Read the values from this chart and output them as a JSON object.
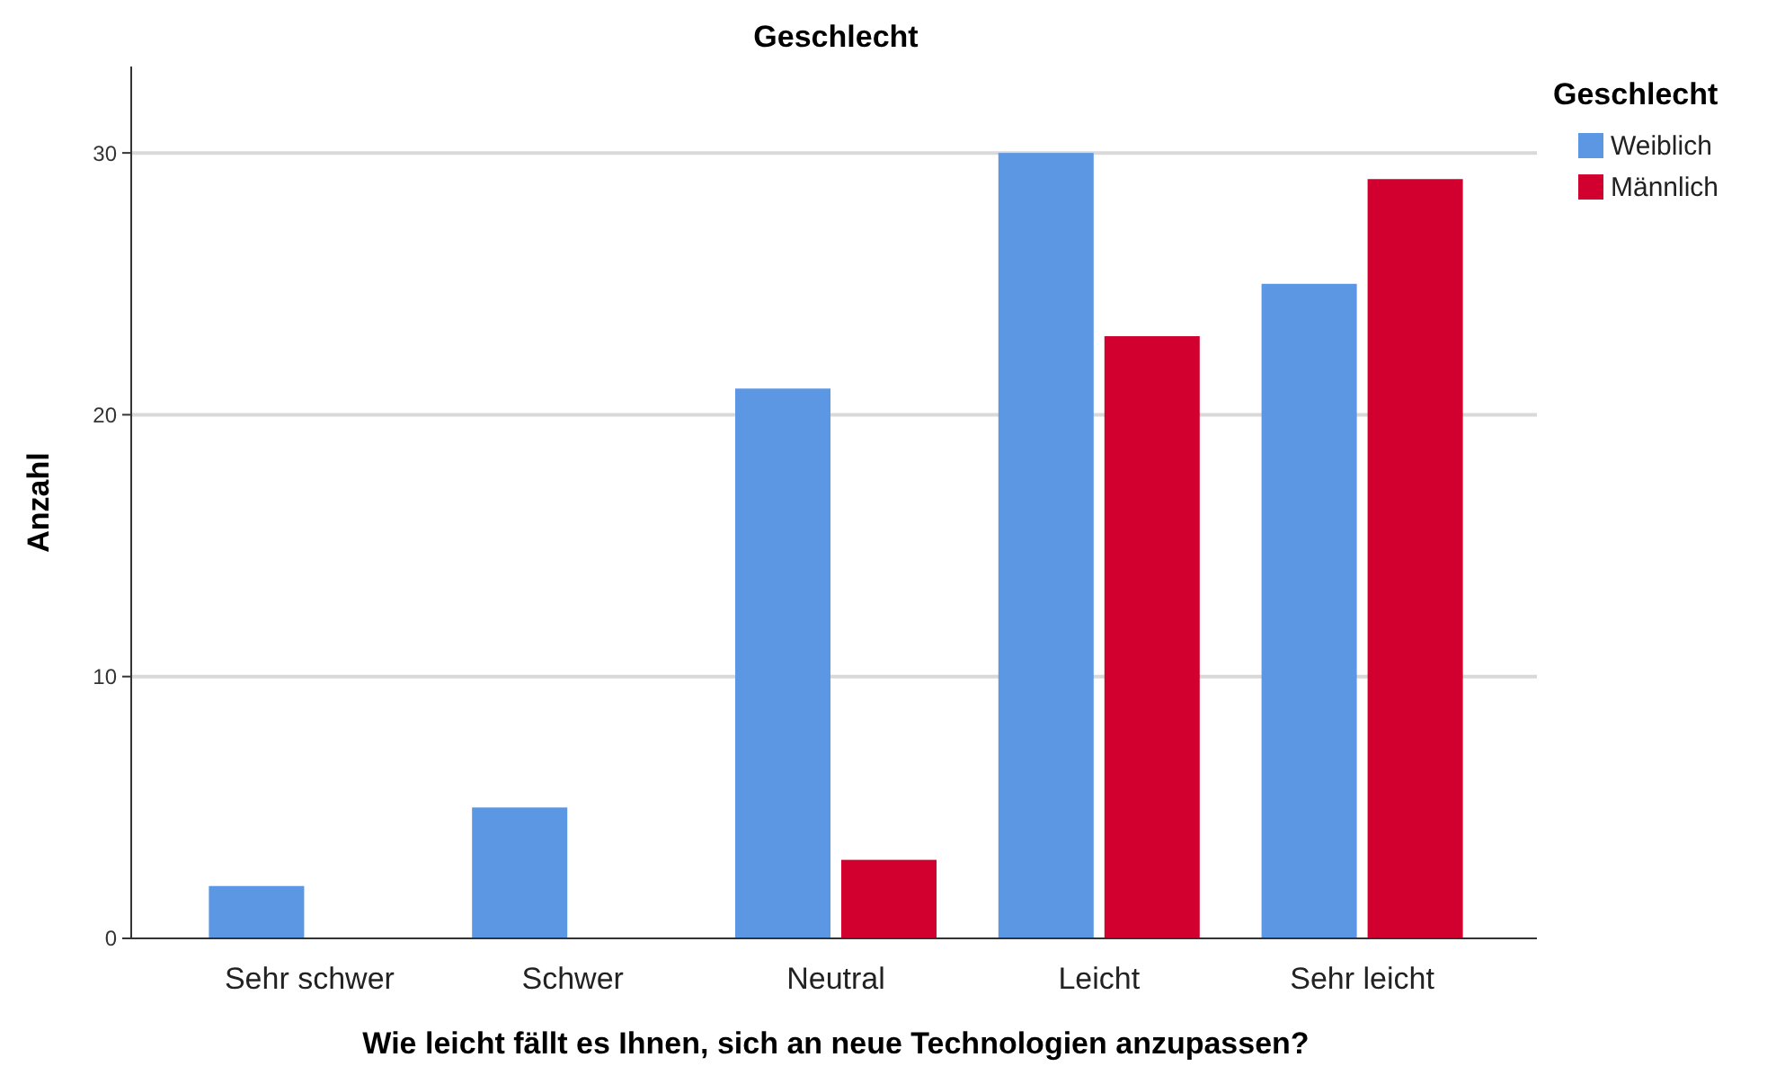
{
  "chart_data": {
    "type": "bar",
    "title": "Geschlecht",
    "xlabel": "Wie leicht fällt es Ihnen, sich an neue Technologien anzupassen?",
    "ylabel": "Anzahl",
    "legend_title": "Geschlecht",
    "categories": [
      "Sehr schwer",
      "Schwer",
      "Neutral",
      "Leicht",
      "Sehr leicht"
    ],
    "series": [
      {
        "name": "Weiblich",
        "color": "#5b97e2",
        "values": [
          2,
          5,
          21,
          30,
          25
        ]
      },
      {
        "name": "Männlich",
        "color": "#d2002f",
        "values": [
          null,
          null,
          3,
          23,
          29
        ]
      }
    ],
    "ylim": [
      0,
      33.3
    ],
    "yticks": [
      0,
      10,
      20,
      30
    ],
    "grid": "y",
    "legend": "top right"
  }
}
